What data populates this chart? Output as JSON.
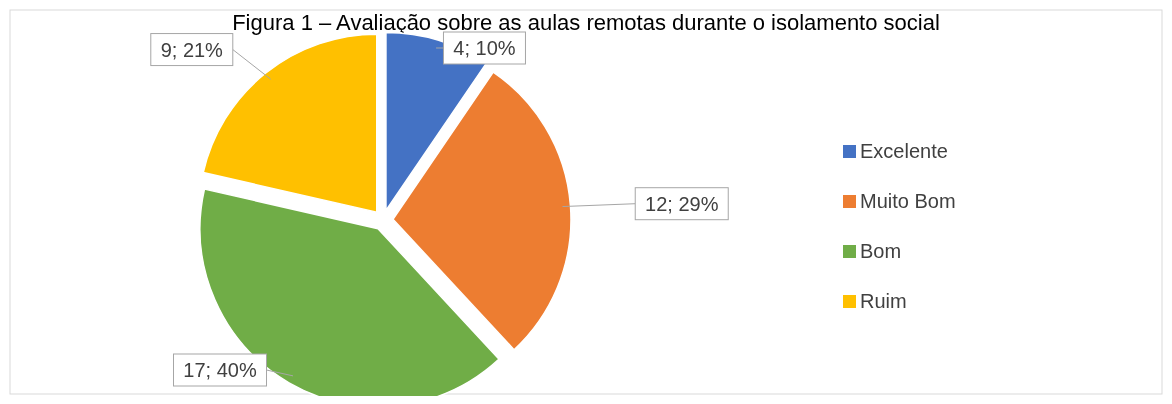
{
  "chart_data": {
    "type": "pie",
    "title": "Figura 1 – Avaliação sobre as aulas remotas durante o isolamento social",
    "categories": [
      "Excelente",
      "Muito Bom",
      "Bom",
      "Ruim"
    ],
    "values": [
      4,
      12,
      17,
      9
    ],
    "colors": [
      "#4472c4",
      "#ed7d31",
      "#70ad47",
      "#ffc000"
    ],
    "value_labels": [
      "4; 10%",
      "12; 29%",
      "17; 40%",
      "9; 21%"
    ],
    "legend": "right"
  }
}
